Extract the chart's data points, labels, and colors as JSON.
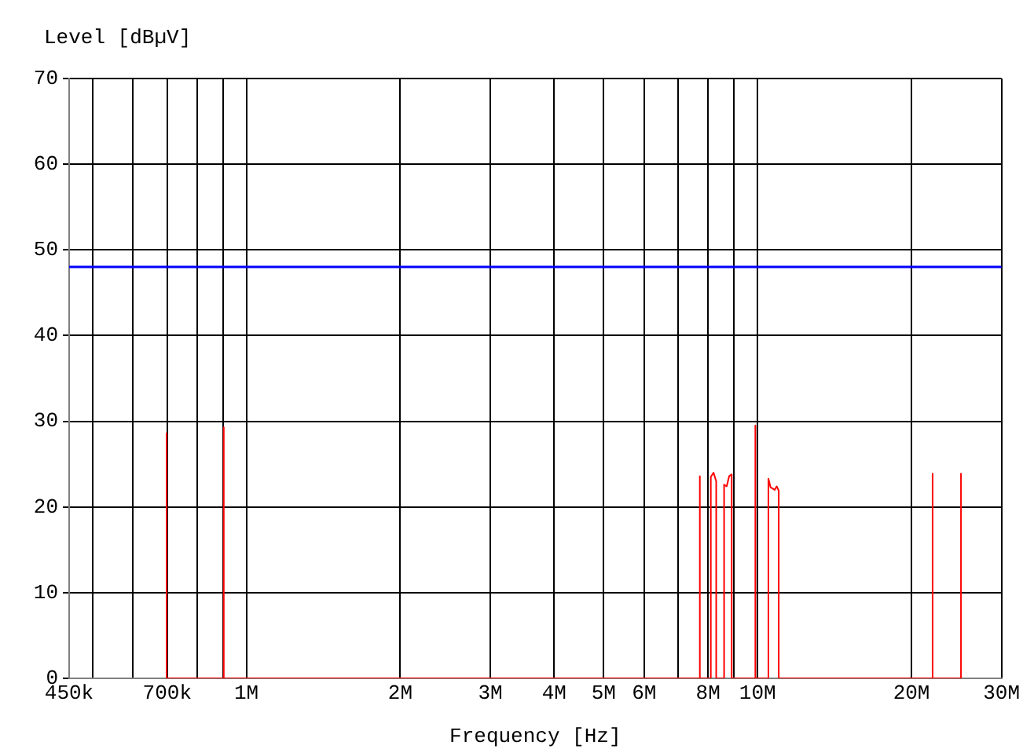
{
  "chart_data": {
    "type": "line",
    "xlabel": "Frequency [Hz]",
    "ylabel": "Level [dBµV]",
    "log": "x",
    "xlim": [
      450000,
      30000000
    ],
    "ylim": [
      0,
      70
    ],
    "xticks": [
      {
        "value": 450000,
        "label": "450k"
      },
      {
        "value": 500000,
        "label": null
      },
      {
        "value": 600000,
        "label": null
      },
      {
        "value": 700000,
        "label": "700k"
      },
      {
        "value": 800000,
        "label": null
      },
      {
        "value": 900000,
        "label": null
      },
      {
        "value": 1000000,
        "label": "1M"
      },
      {
        "value": 2000000,
        "label": "2M"
      },
      {
        "value": 3000000,
        "label": "3M"
      },
      {
        "value": 4000000,
        "label": "4M"
      },
      {
        "value": 5000000,
        "label": "5M"
      },
      {
        "value": 6000000,
        "label": "6M"
      },
      {
        "value": 7000000,
        "label": null
      },
      {
        "value": 8000000,
        "label": "8M"
      },
      {
        "value": 9000000,
        "label": null
      },
      {
        "value": 10000000,
        "label": "10M"
      },
      {
        "value": 20000000,
        "label": "20M"
      },
      {
        "value": 30000000,
        "label": "30M"
      }
    ],
    "yticks": [
      0,
      10,
      20,
      30,
      40,
      50,
      60,
      70
    ],
    "grid": true,
    "line_style": "solid",
    "marker": "none",
    "series": [
      {
        "color": "#ff0000",
        "x": [
          698000,
          698000,
          698000,
          903000,
          903000,
          903000,
          7710000,
          7710000,
          7710000,
          8100000,
          8100000,
          8200000,
          8300000,
          8300000,
          8600000,
          8600000,
          8700000,
          8800000,
          8900000,
          8900000,
          9900000,
          9900000,
          9900000,
          10500000,
          10500000,
          10600000,
          10800000,
          10900000,
          11000000,
          11000000,
          22000000,
          22000000,
          22000000,
          25000000,
          25000000,
          25000000
        ],
        "values": [
          0,
          28.6,
          0,
          0,
          29.3,
          0,
          0,
          23.6,
          0,
          0,
          23.5,
          24.0,
          23.0,
          0,
          0,
          22.6,
          22.4,
          23.6,
          23.8,
          0,
          0,
          29.5,
          0,
          0,
          23.3,
          22.3,
          22.0,
          22.4,
          21.9,
          0,
          0,
          23.9,
          0,
          0,
          23.9,
          0
        ]
      }
    ],
    "ref_lines": [
      {
        "axis": "y",
        "value": 48,
        "color": "#0000ff"
      }
    ]
  }
}
